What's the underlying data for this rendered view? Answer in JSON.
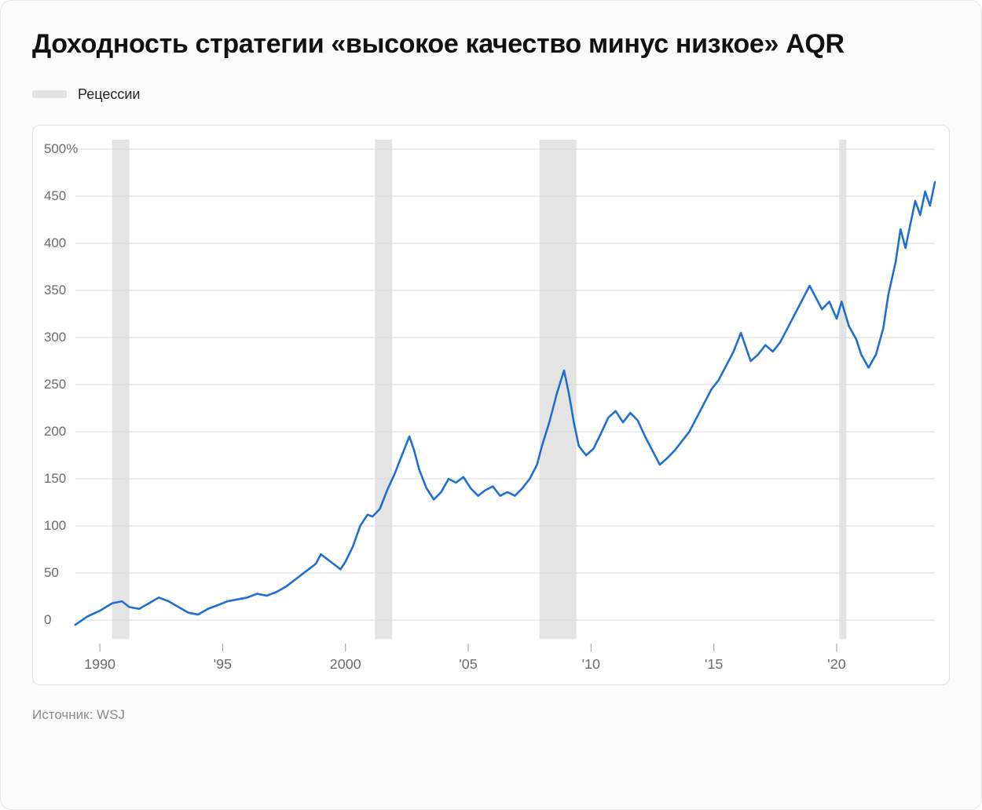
{
  "title": "Доходность стратегии «высокое качество минус низкое» AQR",
  "legend": {
    "label": "Рецессии",
    "swatch_color": "#e4e4e4"
  },
  "source": "Источник: WSJ",
  "chart": {
    "type": "line",
    "background_color": "#ffffff",
    "grid_color": "#d9d9d9",
    "line_color": "#1f6fd1",
    "line_width": 2.6,
    "recession_color": "#e4e4e4",
    "x": {
      "min": 1989,
      "max": 2024,
      "ticks": [
        1990,
        1995,
        2000,
        2005,
        2010,
        2015,
        2020
      ],
      "tick_labels": [
        "1990",
        "'95",
        "2000",
        "'05",
        "'10",
        "'15",
        "'20"
      ]
    },
    "y": {
      "min": -20,
      "max": 510,
      "ticks": [
        0,
        50,
        100,
        150,
        200,
        250,
        300,
        350,
        400,
        450,
        500
      ],
      "tick_labels": [
        "0",
        "50",
        "100",
        "150",
        "200",
        "250",
        "300",
        "350",
        "400",
        "450",
        "500%"
      ]
    },
    "recessions": [
      {
        "start": 1990.5,
        "end": 1991.2
      },
      {
        "start": 2001.2,
        "end": 2001.9
      },
      {
        "start": 2007.9,
        "end": 2009.4
      },
      {
        "start": 2020.1,
        "end": 2020.4
      }
    ],
    "series": [
      {
        "x": 1989.0,
        "y": -5
      },
      {
        "x": 1989.5,
        "y": 4
      },
      {
        "x": 1990.0,
        "y": 10
      },
      {
        "x": 1990.5,
        "y": 18
      },
      {
        "x": 1990.9,
        "y": 20
      },
      {
        "x": 1991.2,
        "y": 14
      },
      {
        "x": 1991.6,
        "y": 12
      },
      {
        "x": 1992.0,
        "y": 18
      },
      {
        "x": 1992.4,
        "y": 24
      },
      {
        "x": 1992.8,
        "y": 20
      },
      {
        "x": 1993.2,
        "y": 14
      },
      {
        "x": 1993.6,
        "y": 8
      },
      {
        "x": 1994.0,
        "y": 6
      },
      {
        "x": 1994.4,
        "y": 12
      },
      {
        "x": 1994.8,
        "y": 16
      },
      {
        "x": 1995.2,
        "y": 20
      },
      {
        "x": 1995.6,
        "y": 22
      },
      {
        "x": 1996.0,
        "y": 24
      },
      {
        "x": 1996.4,
        "y": 28
      },
      {
        "x": 1996.8,
        "y": 26
      },
      {
        "x": 1997.2,
        "y": 30
      },
      {
        "x": 1997.6,
        "y": 36
      },
      {
        "x": 1998.0,
        "y": 44
      },
      {
        "x": 1998.4,
        "y": 52
      },
      {
        "x": 1998.8,
        "y": 60
      },
      {
        "x": 1999.0,
        "y": 70
      },
      {
        "x": 1999.3,
        "y": 64
      },
      {
        "x": 1999.6,
        "y": 58
      },
      {
        "x": 1999.8,
        "y": 54
      },
      {
        "x": 2000.0,
        "y": 62
      },
      {
        "x": 2000.3,
        "y": 78
      },
      {
        "x": 2000.6,
        "y": 100
      },
      {
        "x": 2000.9,
        "y": 112
      },
      {
        "x": 2001.1,
        "y": 110
      },
      {
        "x": 2001.4,
        "y": 118
      },
      {
        "x": 2001.7,
        "y": 138
      },
      {
        "x": 2002.0,
        "y": 155
      },
      {
        "x": 2002.3,
        "y": 175
      },
      {
        "x": 2002.6,
        "y": 195
      },
      {
        "x": 2002.8,
        "y": 180
      },
      {
        "x": 2003.0,
        "y": 160
      },
      {
        "x": 2003.3,
        "y": 140
      },
      {
        "x": 2003.6,
        "y": 128
      },
      {
        "x": 2003.9,
        "y": 136
      },
      {
        "x": 2004.2,
        "y": 150
      },
      {
        "x": 2004.5,
        "y": 146
      },
      {
        "x": 2004.8,
        "y": 152
      },
      {
        "x": 2005.1,
        "y": 140
      },
      {
        "x": 2005.4,
        "y": 132
      },
      {
        "x": 2005.7,
        "y": 138
      },
      {
        "x": 2006.0,
        "y": 142
      },
      {
        "x": 2006.3,
        "y": 132
      },
      {
        "x": 2006.6,
        "y": 136
      },
      {
        "x": 2006.9,
        "y": 132
      },
      {
        "x": 2007.2,
        "y": 140
      },
      {
        "x": 2007.5,
        "y": 150
      },
      {
        "x": 2007.8,
        "y": 165
      },
      {
        "x": 2008.0,
        "y": 185
      },
      {
        "x": 2008.3,
        "y": 210
      },
      {
        "x": 2008.6,
        "y": 240
      },
      {
        "x": 2008.9,
        "y": 265
      },
      {
        "x": 2009.1,
        "y": 240
      },
      {
        "x": 2009.3,
        "y": 210
      },
      {
        "x": 2009.5,
        "y": 185
      },
      {
        "x": 2009.8,
        "y": 175
      },
      {
        "x": 2010.1,
        "y": 182
      },
      {
        "x": 2010.4,
        "y": 198
      },
      {
        "x": 2010.7,
        "y": 215
      },
      {
        "x": 2011.0,
        "y": 222
      },
      {
        "x": 2011.3,
        "y": 210
      },
      {
        "x": 2011.6,
        "y": 220
      },
      {
        "x": 2011.9,
        "y": 212
      },
      {
        "x": 2012.2,
        "y": 195
      },
      {
        "x": 2012.5,
        "y": 180
      },
      {
        "x": 2012.8,
        "y": 165
      },
      {
        "x": 2013.1,
        "y": 172
      },
      {
        "x": 2013.4,
        "y": 180
      },
      {
        "x": 2013.7,
        "y": 190
      },
      {
        "x": 2014.0,
        "y": 200
      },
      {
        "x": 2014.3,
        "y": 215
      },
      {
        "x": 2014.6,
        "y": 230
      },
      {
        "x": 2014.9,
        "y": 245
      },
      {
        "x": 2015.2,
        "y": 255
      },
      {
        "x": 2015.5,
        "y": 270
      },
      {
        "x": 2015.8,
        "y": 285
      },
      {
        "x": 2016.1,
        "y": 305
      },
      {
        "x": 2016.3,
        "y": 290
      },
      {
        "x": 2016.5,
        "y": 275
      },
      {
        "x": 2016.8,
        "y": 282
      },
      {
        "x": 2017.1,
        "y": 292
      },
      {
        "x": 2017.4,
        "y": 285
      },
      {
        "x": 2017.7,
        "y": 295
      },
      {
        "x": 2018.0,
        "y": 310
      },
      {
        "x": 2018.3,
        "y": 325
      },
      {
        "x": 2018.6,
        "y": 340
      },
      {
        "x": 2018.9,
        "y": 355
      },
      {
        "x": 2019.1,
        "y": 345
      },
      {
        "x": 2019.4,
        "y": 330
      },
      {
        "x": 2019.7,
        "y": 338
      },
      {
        "x": 2020.0,
        "y": 320
      },
      {
        "x": 2020.2,
        "y": 338
      },
      {
        "x": 2020.5,
        "y": 312
      },
      {
        "x": 2020.8,
        "y": 298
      },
      {
        "x": 2021.0,
        "y": 282
      },
      {
        "x": 2021.3,
        "y": 268
      },
      {
        "x": 2021.6,
        "y": 282
      },
      {
        "x": 2021.9,
        "y": 310
      },
      {
        "x": 2022.1,
        "y": 345
      },
      {
        "x": 2022.4,
        "y": 380
      },
      {
        "x": 2022.6,
        "y": 415
      },
      {
        "x": 2022.8,
        "y": 395
      },
      {
        "x": 2023.0,
        "y": 420
      },
      {
        "x": 2023.2,
        "y": 445
      },
      {
        "x": 2023.4,
        "y": 430
      },
      {
        "x": 2023.6,
        "y": 455
      },
      {
        "x": 2023.8,
        "y": 440
      },
      {
        "x": 2024.0,
        "y": 465
      }
    ]
  }
}
